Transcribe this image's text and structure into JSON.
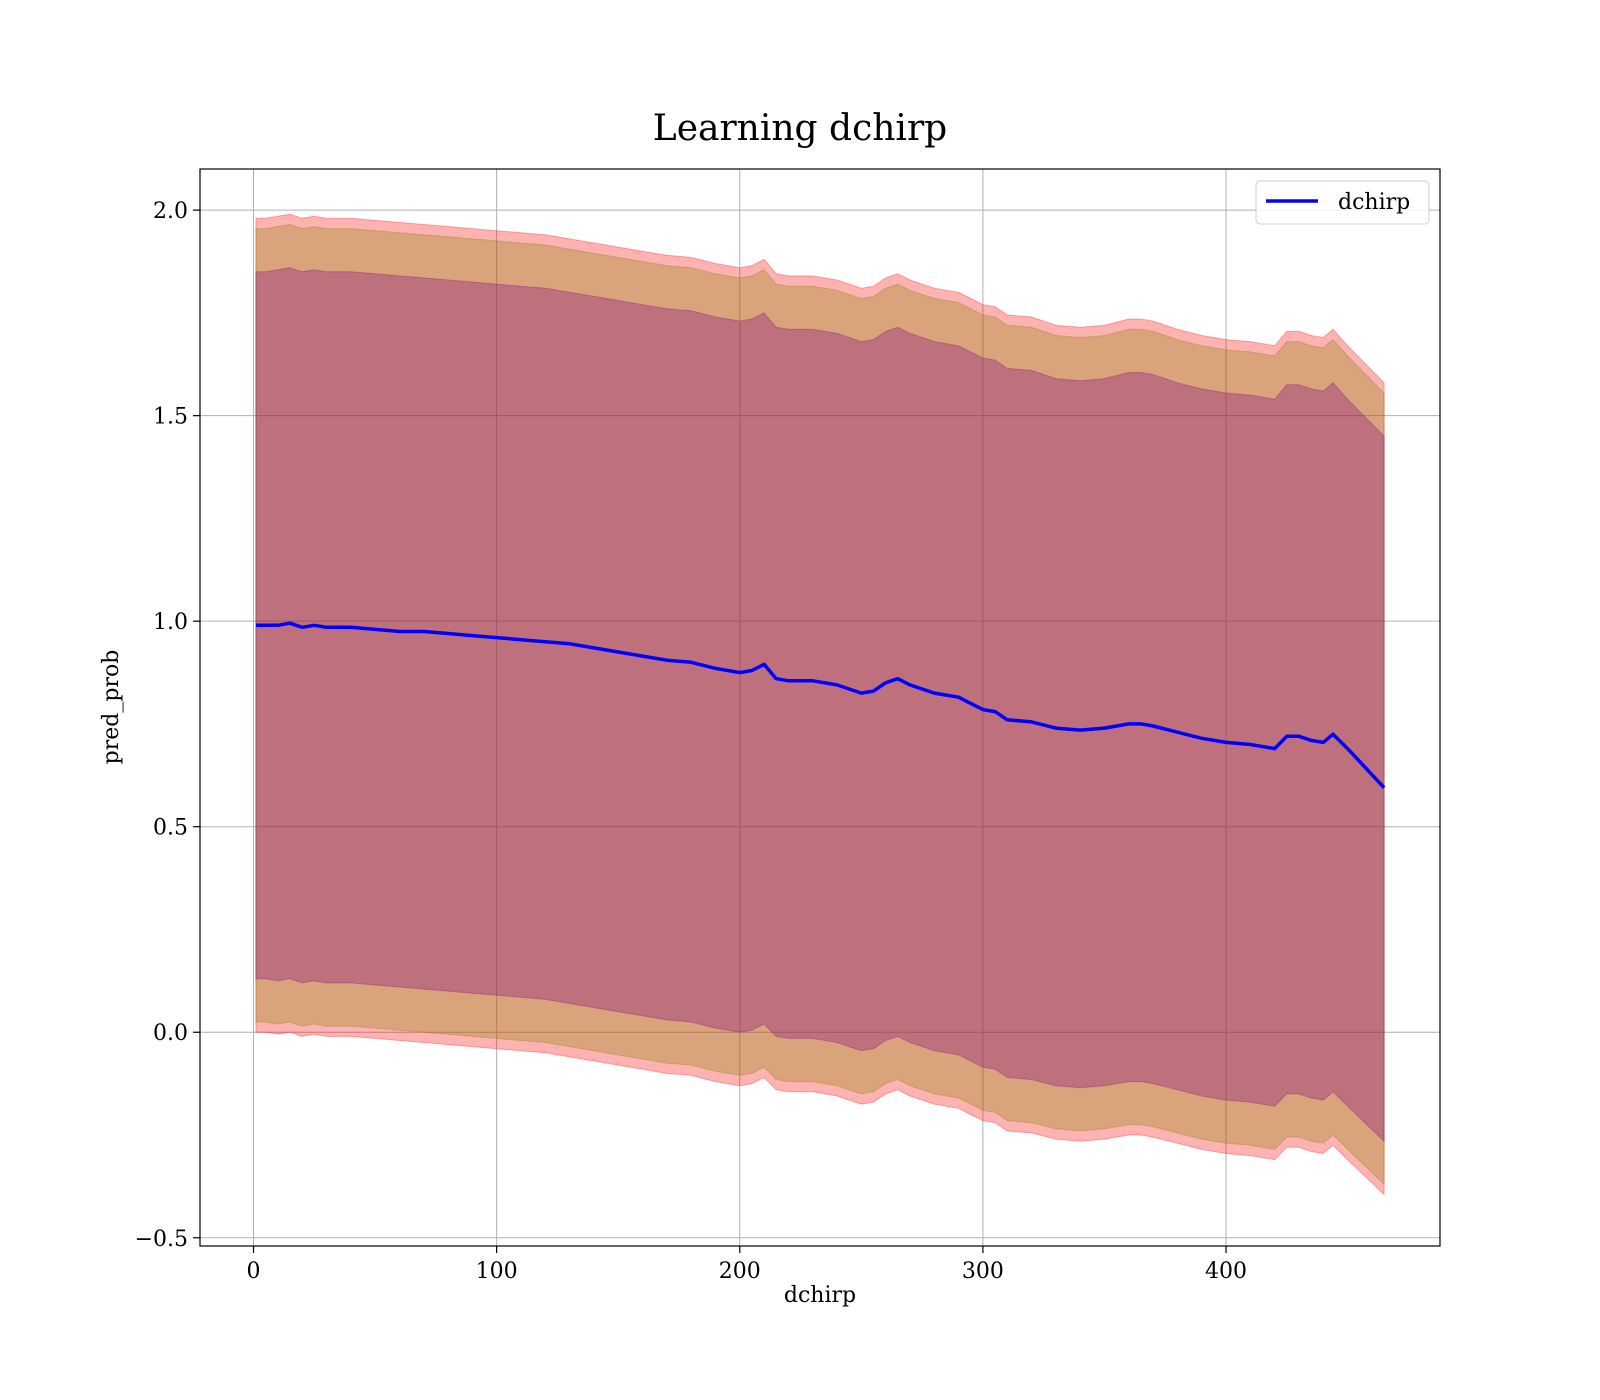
{
  "chart_data": {
    "type": "line",
    "title": "Learning dchirp",
    "xlabel": "dchirp",
    "ylabel": "pred_prob",
    "xlim": [
      -22,
      488
    ],
    "ylim": [
      -0.52,
      2.1
    ],
    "xticks": [
      0,
      100,
      200,
      300,
      400
    ],
    "xtick_labels": [
      "0",
      "100",
      "200",
      "300",
      "400"
    ],
    "yticks": [
      -0.5,
      0.0,
      0.5,
      1.0,
      1.5,
      2.0
    ],
    "ytick_labels": [
      "−0.5",
      "0.0",
      "0.5",
      "1.0",
      "1.5",
      "2.0"
    ],
    "grid": true,
    "legend_position": "top-right",
    "series": [
      {
        "name": "dchirp",
        "color": "#0000ff",
        "x": [
          1,
          5,
          10,
          15,
          20,
          25,
          30,
          40,
          50,
          60,
          70,
          80,
          90,
          100,
          110,
          120,
          130,
          140,
          150,
          160,
          170,
          180,
          190,
          200,
          205,
          210,
          215,
          220,
          230,
          240,
          250,
          255,
          260,
          265,
          270,
          280,
          290,
          295,
          300,
          305,
          310,
          320,
          330,
          340,
          350,
          360,
          365,
          370,
          380,
          390,
          400,
          410,
          420,
          425,
          430,
          435,
          440,
          444,
          450,
          465
        ],
        "y": [
          0.99,
          0.99,
          0.99,
          0.995,
          0.985,
          0.99,
          0.985,
          0.985,
          0.98,
          0.975,
          0.975,
          0.97,
          0.965,
          0.96,
          0.955,
          0.95,
          0.945,
          0.935,
          0.925,
          0.915,
          0.905,
          0.9,
          0.885,
          0.875,
          0.88,
          0.895,
          0.86,
          0.855,
          0.855,
          0.845,
          0.825,
          0.83,
          0.85,
          0.86,
          0.845,
          0.825,
          0.815,
          0.8,
          0.785,
          0.78,
          0.76,
          0.755,
          0.74,
          0.735,
          0.74,
          0.75,
          0.75,
          0.745,
          0.73,
          0.715,
          0.705,
          0.7,
          0.69,
          0.72,
          0.72,
          0.71,
          0.705,
          0.725,
          0.69,
          0.595
        ]
      }
    ],
    "bands": [
      {
        "color": "#ff0000",
        "opacity": 0.3,
        "x": [
          1,
          5,
          10,
          15,
          20,
          25,
          30,
          40,
          50,
          60,
          70,
          80,
          90,
          100,
          110,
          120,
          130,
          140,
          150,
          160,
          170,
          180,
          190,
          200,
          205,
          210,
          215,
          220,
          230,
          240,
          250,
          255,
          260,
          265,
          270,
          280,
          290,
          295,
          300,
          305,
          310,
          320,
          330,
          340,
          350,
          360,
          365,
          370,
          380,
          390,
          400,
          410,
          420,
          425,
          430,
          435,
          440,
          444,
          450,
          465
        ],
        "lower": [
          0.0,
          0.0,
          -0.005,
          0.0,
          -0.01,
          -0.005,
          -0.01,
          -0.01,
          -0.015,
          -0.02,
          -0.025,
          -0.03,
          -0.035,
          -0.04,
          -0.045,
          -0.05,
          -0.06,
          -0.07,
          -0.08,
          -0.09,
          -0.1,
          -0.105,
          -0.12,
          -0.13,
          -0.125,
          -0.11,
          -0.14,
          -0.145,
          -0.145,
          -0.155,
          -0.175,
          -0.17,
          -0.15,
          -0.14,
          -0.155,
          -0.175,
          -0.185,
          -0.2,
          -0.215,
          -0.22,
          -0.24,
          -0.245,
          -0.26,
          -0.265,
          -0.26,
          -0.25,
          -0.25,
          -0.255,
          -0.27,
          -0.285,
          -0.295,
          -0.3,
          -0.31,
          -0.28,
          -0.28,
          -0.29,
          -0.295,
          -0.275,
          -0.31,
          -0.395
        ],
        "upper": [
          1.98,
          1.98,
          1.985,
          1.99,
          1.98,
          1.985,
          1.98,
          1.98,
          1.975,
          1.97,
          1.965,
          1.96,
          1.955,
          1.95,
          1.945,
          1.94,
          1.93,
          1.92,
          1.91,
          1.9,
          1.89,
          1.885,
          1.87,
          1.86,
          1.865,
          1.88,
          1.845,
          1.84,
          1.84,
          1.83,
          1.81,
          1.815,
          1.835,
          1.845,
          1.83,
          1.81,
          1.8,
          1.785,
          1.77,
          1.765,
          1.745,
          1.74,
          1.72,
          1.715,
          1.72,
          1.735,
          1.735,
          1.73,
          1.71,
          1.695,
          1.685,
          1.68,
          1.67,
          1.705,
          1.705,
          1.695,
          1.69,
          1.71,
          1.67,
          1.58
        ]
      },
      {
        "color": "#808000",
        "opacity": 0.3,
        "x": [
          1,
          5,
          10,
          15,
          20,
          25,
          30,
          40,
          50,
          60,
          70,
          80,
          90,
          100,
          110,
          120,
          130,
          140,
          150,
          160,
          170,
          180,
          190,
          200,
          205,
          210,
          215,
          220,
          230,
          240,
          250,
          255,
          260,
          265,
          270,
          280,
          290,
          295,
          300,
          305,
          310,
          320,
          330,
          340,
          350,
          360,
          365,
          370,
          380,
          390,
          400,
          410,
          420,
          425,
          430,
          435,
          440,
          444,
          450,
          465
        ],
        "lower": [
          0.025,
          0.025,
          0.02,
          0.025,
          0.015,
          0.02,
          0.015,
          0.015,
          0.01,
          0.005,
          0.0,
          -0.005,
          -0.01,
          -0.015,
          -0.02,
          -0.025,
          -0.035,
          -0.045,
          -0.055,
          -0.065,
          -0.075,
          -0.08,
          -0.095,
          -0.105,
          -0.1,
          -0.085,
          -0.115,
          -0.12,
          -0.12,
          -0.13,
          -0.15,
          -0.145,
          -0.125,
          -0.115,
          -0.13,
          -0.15,
          -0.16,
          -0.175,
          -0.19,
          -0.195,
          -0.215,
          -0.22,
          -0.235,
          -0.24,
          -0.235,
          -0.225,
          -0.225,
          -0.23,
          -0.245,
          -0.26,
          -0.27,
          -0.275,
          -0.285,
          -0.255,
          -0.255,
          -0.265,
          -0.27,
          -0.25,
          -0.285,
          -0.37
        ],
        "upper": [
          1.955,
          1.955,
          1.96,
          1.965,
          1.955,
          1.96,
          1.955,
          1.955,
          1.95,
          1.945,
          1.94,
          1.935,
          1.93,
          1.925,
          1.92,
          1.915,
          1.905,
          1.895,
          1.885,
          1.875,
          1.865,
          1.86,
          1.845,
          1.835,
          1.84,
          1.855,
          1.82,
          1.815,
          1.815,
          1.805,
          1.785,
          1.79,
          1.81,
          1.82,
          1.805,
          1.785,
          1.775,
          1.76,
          1.745,
          1.74,
          1.72,
          1.715,
          1.695,
          1.69,
          1.695,
          1.71,
          1.71,
          1.705,
          1.685,
          1.67,
          1.66,
          1.655,
          1.645,
          1.68,
          1.68,
          1.67,
          1.665,
          1.685,
          1.645,
          1.555
        ]
      },
      {
        "color": "#800080",
        "opacity": 0.3,
        "x": [
          1,
          5,
          10,
          15,
          20,
          25,
          30,
          40,
          50,
          60,
          70,
          80,
          90,
          100,
          110,
          120,
          130,
          140,
          150,
          160,
          170,
          180,
          190,
          200,
          205,
          210,
          215,
          220,
          230,
          240,
          250,
          255,
          260,
          265,
          270,
          280,
          290,
          295,
          300,
          305,
          310,
          320,
          330,
          340,
          350,
          360,
          365,
          370,
          380,
          390,
          400,
          410,
          420,
          425,
          430,
          435,
          440,
          444,
          450,
          465
        ],
        "lower": [
          0.13,
          0.13,
          0.125,
          0.13,
          0.12,
          0.125,
          0.12,
          0.12,
          0.115,
          0.11,
          0.105,
          0.1,
          0.095,
          0.09,
          0.085,
          0.08,
          0.07,
          0.06,
          0.05,
          0.04,
          0.03,
          0.025,
          0.01,
          0.0,
          0.005,
          0.02,
          -0.01,
          -0.015,
          -0.015,
          -0.025,
          -0.045,
          -0.04,
          -0.02,
          -0.01,
          -0.025,
          -0.045,
          -0.055,
          -0.07,
          -0.085,
          -0.09,
          -0.11,
          -0.115,
          -0.13,
          -0.135,
          -0.13,
          -0.12,
          -0.12,
          -0.125,
          -0.14,
          -0.155,
          -0.165,
          -0.17,
          -0.18,
          -0.15,
          -0.15,
          -0.16,
          -0.165,
          -0.145,
          -0.18,
          -0.265
        ],
        "upper": [
          1.85,
          1.85,
          1.855,
          1.86,
          1.85,
          1.855,
          1.85,
          1.85,
          1.845,
          1.84,
          1.835,
          1.83,
          1.825,
          1.82,
          1.815,
          1.81,
          1.8,
          1.79,
          1.78,
          1.77,
          1.76,
          1.755,
          1.74,
          1.73,
          1.735,
          1.75,
          1.715,
          1.71,
          1.71,
          1.7,
          1.68,
          1.685,
          1.705,
          1.715,
          1.7,
          1.68,
          1.67,
          1.655,
          1.64,
          1.635,
          1.615,
          1.61,
          1.59,
          1.585,
          1.59,
          1.605,
          1.605,
          1.6,
          1.58,
          1.565,
          1.555,
          1.55,
          1.54,
          1.575,
          1.575,
          1.565,
          1.56,
          1.58,
          1.54,
          1.45
        ]
      }
    ]
  }
}
